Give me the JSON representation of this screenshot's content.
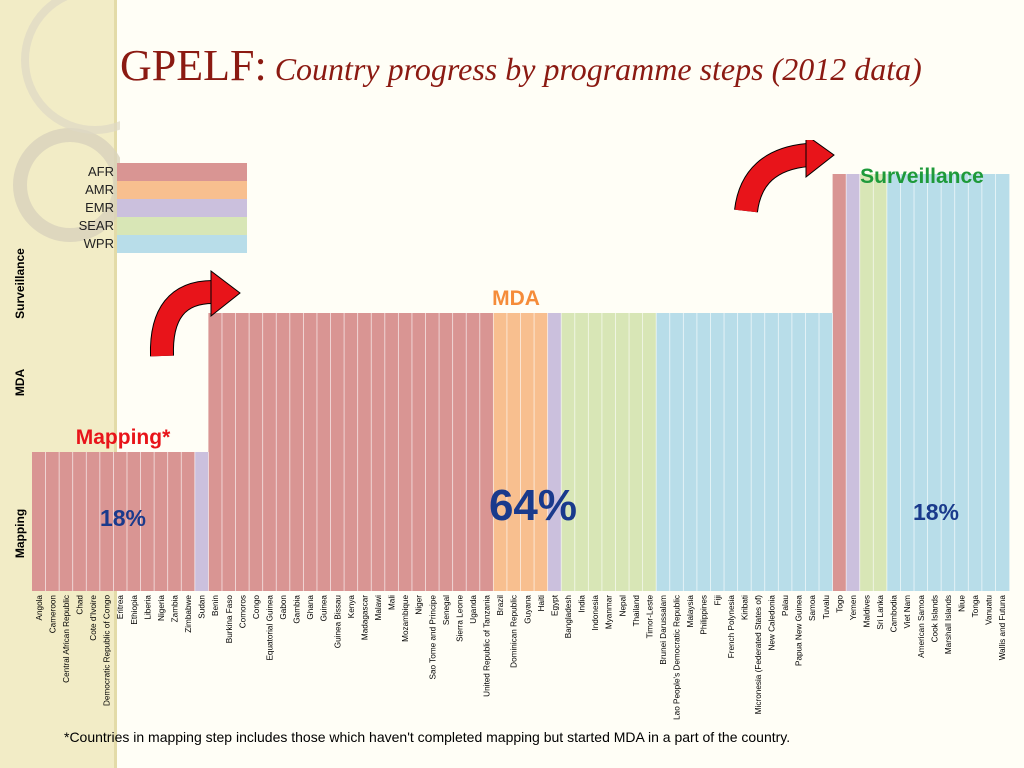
{
  "title": {
    "main": "GPELF:",
    "sub": "Country progress by programme steps (2012 data)"
  },
  "footnote": "*Countries in mapping step includes those which haven't completed mapping but started MDA in a part of the country.",
  "colors": {
    "AFR": "#d99593",
    "AMR": "#f8bf8f",
    "EMR": "#cbc0dd",
    "SEAR": "#d8e6b6",
    "WPR": "#b8dde9",
    "divider": "#ffffff",
    "arrow": "#e8141a",
    "mapping_label": "#e8141a",
    "mda_label": "#f58c3a",
    "surveillance_label": "#1e9a3a",
    "percent_label": "#1a3a8c"
  },
  "chart_data": {
    "type": "bar",
    "title": "",
    "ylabel_steps": [
      "Mapping",
      "MDA",
      "Surveillance"
    ],
    "legend": {
      "placement": "top-left",
      "entries": [
        "AFR",
        "AMR",
        "EMR",
        "SEAR",
        "WPR"
      ]
    },
    "categories": [
      "Angola",
      "Cameroon",
      "Central African Republic",
      "Chad",
      "Cote d'Ivoire",
      "Democratic Republic of Congo",
      "Eritrea",
      "Ethiopia",
      "Liberia",
      "Nigeria",
      "Zambia",
      "Zimbabwe",
      "Sudan",
      "Benin",
      "Burkina Faso",
      "Comoros",
      "Congo",
      "Equatorial Guinea",
      "Gabon",
      "Gambia",
      "Ghana",
      "Guinea",
      "Guinea Bissau",
      "Kenya",
      "Madagascar",
      "Malawi",
      "Mali",
      "Mozambique",
      "Niger",
      "Sao Tome and Principe",
      "Senegal",
      "Sierra Leone",
      "Uganda",
      "United Republic of Tanzania",
      "Brazil",
      "Dominican Republic",
      "Guyana",
      "Haiti",
      "Egypt",
      "Bangladesh",
      "India",
      "Indonesia",
      "Myanmar",
      "Nepal",
      "Thailand",
      "Timor-Leste",
      "Brunei Darussalam",
      "Lao People's Democratic Republic",
      "Malaysia",
      "Philippines",
      "Fiji",
      "French Polynesia",
      "Kiribati",
      "Micronesia (Federated States of)",
      "New Caledonia",
      "Palau",
      "Papua New Guinea",
      "Samoa",
      "Tuvalu",
      "Togo",
      "Yemen",
      "Maldives",
      "Sri Lanka",
      "Cambodia",
      "Viet Nam",
      "American Samoa",
      "Cook Islands",
      "Marshall Islands",
      "Niue",
      "Tonga",
      "Vanuatu",
      "Wallis and Futuna"
    ],
    "regions": [
      "AFR",
      "AFR",
      "AFR",
      "AFR",
      "AFR",
      "AFR",
      "AFR",
      "AFR",
      "AFR",
      "AFR",
      "AFR",
      "AFR",
      "EMR",
      "AFR",
      "AFR",
      "AFR",
      "AFR",
      "AFR",
      "AFR",
      "AFR",
      "AFR",
      "AFR",
      "AFR",
      "AFR",
      "AFR",
      "AFR",
      "AFR",
      "AFR",
      "AFR",
      "AFR",
      "AFR",
      "AFR",
      "AFR",
      "AFR",
      "AMR",
      "AMR",
      "AMR",
      "AMR",
      "EMR",
      "SEAR",
      "SEAR",
      "SEAR",
      "SEAR",
      "SEAR",
      "SEAR",
      "SEAR",
      "WPR",
      "WPR",
      "WPR",
      "WPR",
      "WPR",
      "WPR",
      "WPR",
      "WPR",
      "WPR",
      "WPR",
      "WPR",
      "WPR",
      "WPR",
      "AFR",
      "EMR",
      "SEAR",
      "SEAR",
      "WPR",
      "WPR",
      "WPR",
      "WPR",
      "WPR",
      "WPR",
      "WPR",
      "WPR",
      "WPR"
    ],
    "values": [
      1,
      1,
      1,
      1,
      1,
      1,
      1,
      1,
      1,
      1,
      1,
      1,
      1,
      2,
      2,
      2,
      2,
      2,
      2,
      2,
      2,
      2,
      2,
      2,
      2,
      2,
      2,
      2,
      2,
      2,
      2,
      2,
      2,
      2,
      2,
      2,
      2,
      2,
      2,
      2,
      2,
      2,
      2,
      2,
      2,
      2,
      2,
      2,
      2,
      2,
      2,
      2,
      2,
      2,
      2,
      2,
      2,
      2,
      2,
      3,
      3,
      3,
      3,
      3,
      3,
      3,
      3,
      3,
      3,
      3,
      3,
      3
    ],
    "groups": [
      {
        "step": "Mapping",
        "label": "Mapping*",
        "percent": "18%",
        "from": 0,
        "to": 12
      },
      {
        "step": "MDA",
        "label": "MDA",
        "percent": "64%",
        "from": 13,
        "to": 58
      },
      {
        "step": "Surveillance",
        "label": "Surveillance",
        "percent": "18%",
        "from": 59,
        "to": 71
      }
    ]
  }
}
